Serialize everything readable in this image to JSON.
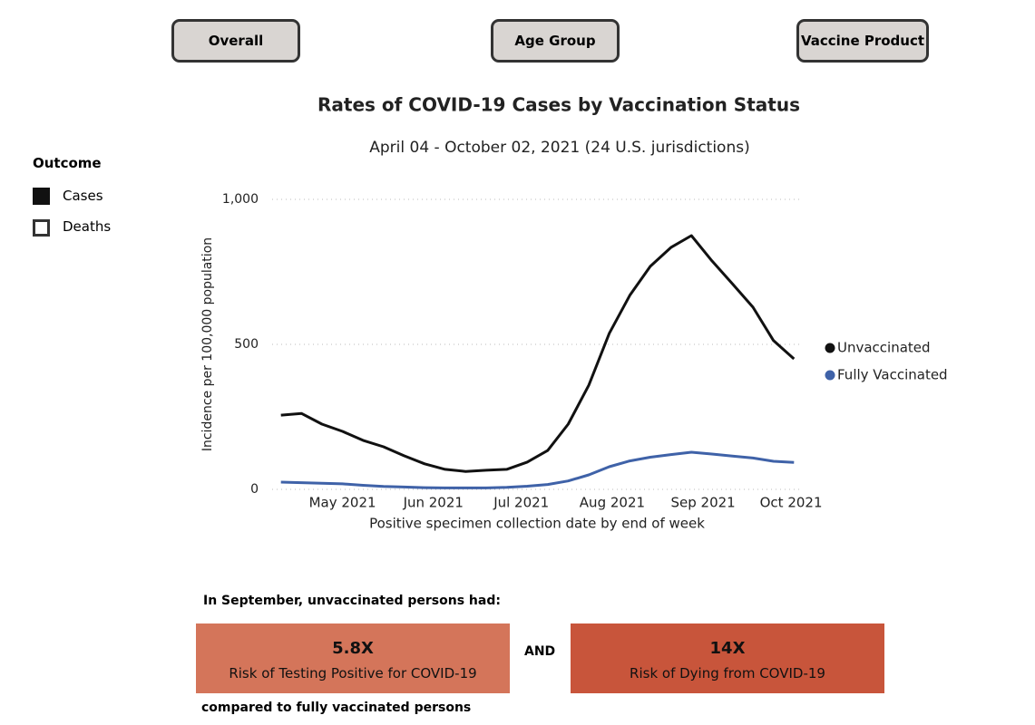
{
  "buttons": [
    "Overall",
    "Age Group",
    "Vaccine Product"
  ],
  "outcome_legend": {
    "title": "Outcome",
    "items": [
      "Cases",
      "Deaths"
    ]
  },
  "chart_data": {
    "type": "line",
    "title": "Rates of COVID-19 Cases by Vaccination Status",
    "subtitle": "April 04 - October 02, 2021 (24 U.S. jurisdictions)",
    "x_label": "Positive specimen collection date by end of week",
    "y_label": "Incidence per 100,000 population",
    "x": [
      "2021-04-10",
      "2021-04-17",
      "2021-04-24",
      "2021-05-01",
      "2021-05-08",
      "2021-05-15",
      "2021-05-22",
      "2021-05-29",
      "2021-06-05",
      "2021-06-12",
      "2021-06-19",
      "2021-06-26",
      "2021-07-03",
      "2021-07-10",
      "2021-07-17",
      "2021-07-24",
      "2021-07-31",
      "2021-08-07",
      "2021-08-14",
      "2021-08-21",
      "2021-08-28",
      "2021-09-04",
      "2021-09-11",
      "2021-09-18",
      "2021-09-25",
      "2021-10-02"
    ],
    "series": [
      {
        "name": "Unvaccinated",
        "color": "#111111",
        "values": [
          256,
          262,
          225,
          200,
          169,
          147,
          116,
          88,
          69,
          62,
          66,
          69,
          94,
          134,
          225,
          359,
          538,
          669,
          769,
          834,
          875,
          788,
          709,
          628,
          513,
          450
        ]
      },
      {
        "name": "Fully Vaccinated",
        "color": "#3f62a8",
        "values": [
          25,
          23,
          21,
          19,
          14,
          10,
          8,
          6,
          5,
          5,
          5,
          7,
          11,
          17,
          29,
          50,
          78,
          98,
          111,
          120,
          128,
          122,
          115,
          108,
          97,
          93
        ]
      }
    ],
    "xlim": [
      "2021-04-07",
      "2021-10-05"
    ],
    "xticks": [
      {
        "value": "2021-05-01",
        "label": "May 2021"
      },
      {
        "value": "2021-06-01",
        "label": "Jun 2021"
      },
      {
        "value": "2021-07-01",
        "label": "Jul 2021"
      },
      {
        "value": "2021-08-01",
        "label": "Aug 2021"
      },
      {
        "value": "2021-09-01",
        "label": "Sep 2021"
      },
      {
        "value": "2021-10-01",
        "label": "Oct 2021"
      }
    ],
    "ylim": [
      0,
      1000
    ],
    "yticks": [
      0,
      500,
      {
        "value": 1000,
        "label": "1,000"
      }
    ],
    "grid": true
  },
  "callout": {
    "intro": "In September, unvaccinated persons had:",
    "boxes": [
      {
        "value": "5.8X",
        "text": "Risk of Testing Positive for COVID-19",
        "color": "#d4755a"
      },
      {
        "value": "14X",
        "text": "Risk of Dying from COVID-19",
        "color": "#c8553b"
      }
    ],
    "joiner": "AND",
    "footer": "compared to fully vaccinated persons"
  }
}
